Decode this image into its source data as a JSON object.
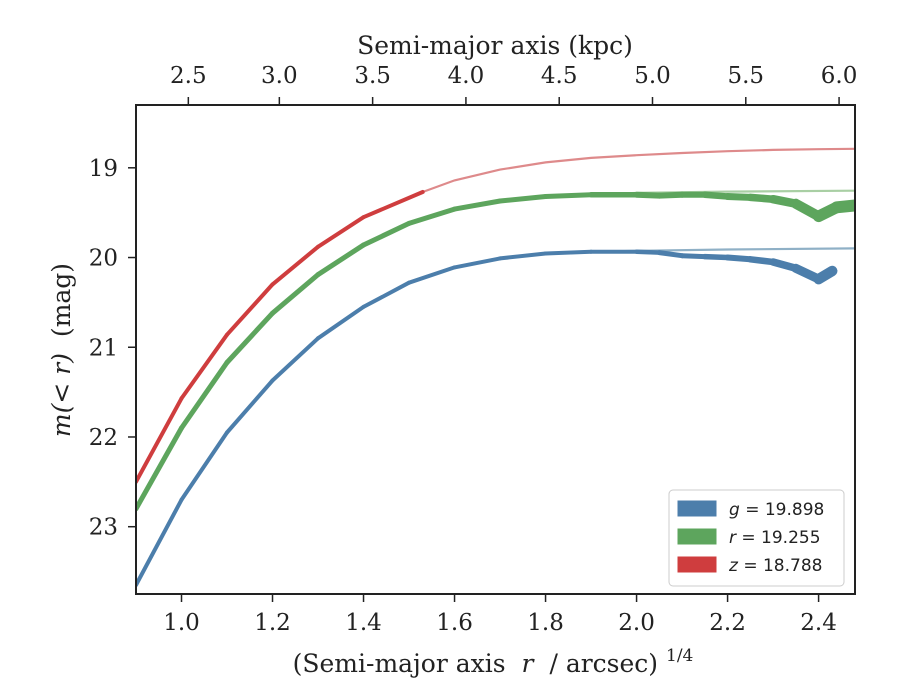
{
  "chart_data": {
    "type": "line",
    "xlabel_base": "(Semi-major axis",
    "xlabel_var": "r",
    "xlabel_unit": "/ arcsec)",
    "xlabel_exp": "1/4",
    "ylabel_var": "m(< r)",
    "ylabel_unit": "(mag)",
    "top_xlabel": "Semi-major axis (kpc)",
    "xlim": [
      0.9,
      2.48
    ],
    "ylim": [
      23.75,
      18.3
    ],
    "y_inverted": true,
    "xticks": [
      1.0,
      1.2,
      1.4,
      1.6,
      1.8,
      2.0,
      2.2,
      2.4
    ],
    "xtick_labels": [
      "1.0",
      "1.2",
      "1.4",
      "1.6",
      "1.8",
      "2.0",
      "2.2",
      "2.4"
    ],
    "yticks": [
      19,
      20,
      21,
      22,
      23
    ],
    "ytick_labels": [
      "19",
      "20",
      "21",
      "22",
      "23"
    ],
    "top_xticks": [
      {
        "label": "2.5",
        "x": 1.015
      },
      {
        "label": "3.0",
        "x": 1.215
      },
      {
        "label": "3.5",
        "x": 1.42
      },
      {
        "label": "4.0",
        "x": 1.625
      },
      {
        "label": "4.5",
        "x": 1.83
      },
      {
        "label": "5.0",
        "x": 2.035
      },
      {
        "label": "5.5",
        "x": 2.24
      },
      {
        "label": "6.0",
        "x": 2.445
      }
    ],
    "legend_position": "lower-right",
    "series": [
      {
        "name": "g",
        "legend_label": "g = 19.898",
        "color": "#4c7eab",
        "model_color": "#8fb0c6",
        "model_x": [
          0.9,
          1.0,
          1.1,
          1.2,
          1.3,
          1.4,
          1.5,
          1.6,
          1.7,
          1.8,
          1.9,
          2.0,
          2.2,
          2.48
        ],
        "model_y": [
          23.65,
          22.7,
          21.95,
          21.37,
          20.9,
          20.55,
          20.28,
          20.11,
          20.01,
          19.96,
          19.935,
          19.925,
          19.91,
          19.898
        ],
        "data_x": [
          0.9,
          1.0,
          1.1,
          1.2,
          1.3,
          1.4,
          1.5,
          1.6,
          1.7,
          1.8,
          1.9,
          2.0,
          2.05,
          2.1,
          2.15,
          2.2,
          2.25,
          2.3,
          2.35,
          2.4,
          2.43
        ],
        "data_y": [
          23.65,
          22.7,
          21.95,
          21.37,
          20.9,
          20.55,
          20.28,
          20.11,
          20.01,
          19.955,
          19.935,
          19.935,
          19.945,
          19.98,
          19.99,
          20.0,
          20.02,
          20.05,
          20.12,
          20.24,
          20.15
        ],
        "data_width": [
          4,
          4,
          4,
          4,
          4,
          4,
          4,
          4,
          4,
          4,
          4,
          4,
          5,
          5,
          5,
          6,
          6,
          7,
          8,
          10,
          11
        ]
      },
      {
        "name": "r",
        "legend_label": "r = 19.255",
        "color": "#5da55d",
        "model_color": "#a9cfa4",
        "model_x": [
          0.9,
          1.0,
          1.1,
          1.2,
          1.3,
          1.4,
          1.5,
          1.6,
          1.7,
          1.8,
          1.9,
          2.0,
          2.2,
          2.48
        ],
        "model_y": [
          22.8,
          21.9,
          21.17,
          20.62,
          20.19,
          19.86,
          19.62,
          19.46,
          19.37,
          19.32,
          19.295,
          19.28,
          19.265,
          19.255
        ],
        "data_x": [
          0.9,
          1.0,
          1.1,
          1.2,
          1.3,
          1.4,
          1.5,
          1.6,
          1.7,
          1.8,
          1.9,
          2.0,
          2.05,
          2.1,
          2.15,
          2.2,
          2.25,
          2.3,
          2.35,
          2.4,
          2.44,
          2.48
        ],
        "data_y": [
          22.8,
          21.9,
          21.17,
          20.62,
          20.19,
          19.86,
          19.62,
          19.46,
          19.37,
          19.32,
          19.3,
          19.3,
          19.31,
          19.3,
          19.3,
          19.32,
          19.33,
          19.35,
          19.4,
          19.54,
          19.44,
          19.42
        ],
        "data_width": [
          5,
          5,
          5,
          5,
          5,
          5,
          5,
          5,
          5,
          5,
          5,
          6,
          6,
          6,
          6,
          7,
          7,
          8,
          9,
          11,
          12,
          12
        ]
      },
      {
        "name": "z",
        "legend_label": "z = 18.788",
        "color": "#cf3d3e",
        "model_color": "#de8a8b",
        "model_x": [
          1.53,
          1.6,
          1.7,
          1.8,
          1.9,
          2.0,
          2.1,
          2.2,
          2.3,
          2.4,
          2.48
        ],
        "model_y": [
          19.27,
          19.14,
          19.02,
          18.94,
          18.89,
          18.86,
          18.835,
          18.815,
          18.8,
          18.793,
          18.788
        ],
        "data_x": [
          0.9,
          1.0,
          1.1,
          1.2,
          1.3,
          1.4,
          1.53
        ],
        "data_y": [
          22.5,
          21.57,
          20.86,
          20.3,
          19.88,
          19.55,
          19.27
        ],
        "data_width": [
          4,
          4,
          4,
          4,
          4,
          4,
          4
        ]
      }
    ]
  }
}
